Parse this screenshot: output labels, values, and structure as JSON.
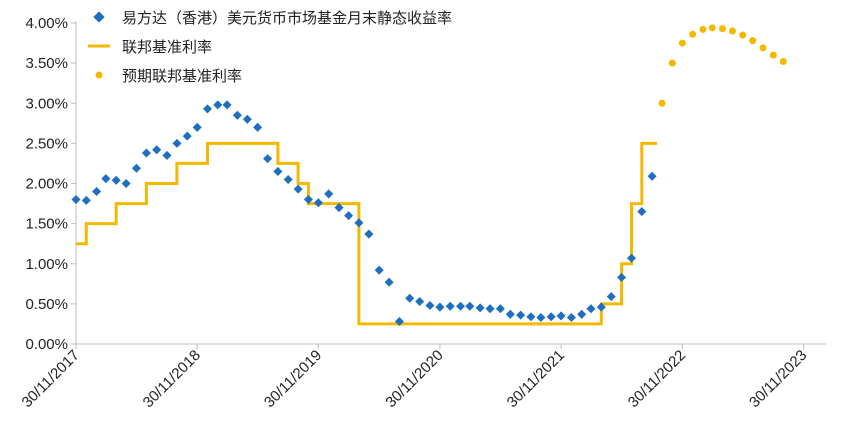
{
  "chart_data": {
    "type": "line",
    "ylim": [
      0,
      0.04
    ],
    "y_ticks": [
      "0.00%",
      "0.50%",
      "1.00%",
      "1.50%",
      "2.00%",
      "2.50%",
      "3.00%",
      "3.50%",
      "4.00%"
    ],
    "x_ticks": [
      "30/11/2017",
      "30/11/2018",
      "30/11/2019",
      "30/11/2020",
      "30/11/2021",
      "30/11/2022",
      "30/11/2023"
    ],
    "x_tick_dates": [
      "2017-11-30",
      "2018-11-30",
      "2019-11-30",
      "2020-11-30",
      "2021-11-30",
      "2022-11-30",
      "2023-11-30"
    ],
    "colors": {
      "fund": "#1f6fc0",
      "fed": "#f5b800",
      "projection": "#f5b800",
      "axis": "#bfbfbf"
    },
    "grid": false,
    "legend_position": "top-center",
    "series": [
      {
        "name": "易方达（香港）美元货币市场基金月末静态收益率",
        "style": "diamond-marker",
        "color": "#1f6fc0",
        "points": [
          [
            "2017-11-30",
            0.018
          ],
          [
            "2017-12-31",
            0.0179
          ],
          [
            "2018-01-31",
            0.019
          ],
          [
            "2018-02-28",
            0.0206
          ],
          [
            "2018-03-31",
            0.0204
          ],
          [
            "2018-04-30",
            0.02
          ],
          [
            "2018-05-31",
            0.0219
          ],
          [
            "2018-06-30",
            0.0238
          ],
          [
            "2018-07-31",
            0.0242
          ],
          [
            "2018-08-31",
            0.0235
          ],
          [
            "2018-09-30",
            0.025
          ],
          [
            "2018-10-31",
            0.0259
          ],
          [
            "2018-11-30",
            0.027
          ],
          [
            "2018-12-31",
            0.0293
          ],
          [
            "2019-01-31",
            0.0298
          ],
          [
            "2019-02-28",
            0.0298
          ],
          [
            "2019-03-31",
            0.0285
          ],
          [
            "2019-04-30",
            0.028
          ],
          [
            "2019-05-31",
            0.027
          ],
          [
            "2019-06-30",
            0.0231
          ],
          [
            "2019-07-31",
            0.0215
          ],
          [
            "2019-08-31",
            0.0205
          ],
          [
            "2019-09-30",
            0.0193
          ],
          [
            "2019-10-31",
            0.018
          ],
          [
            "2019-11-30",
            0.0176
          ],
          [
            "2019-12-31",
            0.0187
          ],
          [
            "2020-01-31",
            0.017
          ],
          [
            "2020-02-29",
            0.016
          ],
          [
            "2020-03-31",
            0.0151
          ],
          [
            "2020-04-30",
            0.0137
          ],
          [
            "2020-05-31",
            0.0092
          ],
          [
            "2020-06-30",
            0.0077
          ],
          [
            "2020-07-31",
            0.0028
          ],
          [
            "2020-08-31",
            0.0057
          ],
          [
            "2020-09-30",
            0.0053
          ],
          [
            "2020-10-31",
            0.0048
          ],
          [
            "2020-11-30",
            0.0046
          ],
          [
            "2020-12-31",
            0.0047
          ],
          [
            "2021-01-31",
            0.0047
          ],
          [
            "2021-02-28",
            0.0047
          ],
          [
            "2021-03-31",
            0.0045
          ],
          [
            "2021-04-30",
            0.0044
          ],
          [
            "2021-05-31",
            0.0044
          ],
          [
            "2021-06-30",
            0.0037
          ],
          [
            "2021-07-31",
            0.0036
          ],
          [
            "2021-08-31",
            0.0034
          ],
          [
            "2021-09-30",
            0.0033
          ],
          [
            "2021-10-31",
            0.0034
          ],
          [
            "2021-11-30",
            0.0035
          ],
          [
            "2021-12-31",
            0.0033
          ],
          [
            "2022-01-31",
            0.0037
          ],
          [
            "2022-02-28",
            0.0044
          ],
          [
            "2022-03-31",
            0.0046
          ],
          [
            "2022-04-30",
            0.0059
          ],
          [
            "2022-05-31",
            0.0083
          ],
          [
            "2022-06-30",
            0.0107
          ],
          [
            "2022-07-31",
            0.0165
          ],
          [
            "2022-08-31",
            0.0209
          ]
        ]
      },
      {
        "name": "联邦基准利率",
        "style": "step-line",
        "color": "#f5b800",
        "points": [
          [
            "2017-11-30",
            0.0125
          ],
          [
            "2017-12-31",
            0.015
          ],
          [
            "2018-01-31",
            0.015
          ],
          [
            "2018-02-28",
            0.015
          ],
          [
            "2018-03-31",
            0.0175
          ],
          [
            "2018-04-30",
            0.0175
          ],
          [
            "2018-05-31",
            0.0175
          ],
          [
            "2018-06-30",
            0.02
          ],
          [
            "2018-07-31",
            0.02
          ],
          [
            "2018-08-31",
            0.02
          ],
          [
            "2018-09-30",
            0.0225
          ],
          [
            "2018-10-31",
            0.0225
          ],
          [
            "2018-11-30",
            0.0225
          ],
          [
            "2018-12-31",
            0.025
          ],
          [
            "2019-01-31",
            0.025
          ],
          [
            "2019-02-28",
            0.025
          ],
          [
            "2019-03-31",
            0.025
          ],
          [
            "2019-04-30",
            0.025
          ],
          [
            "2019-05-31",
            0.025
          ],
          [
            "2019-06-30",
            0.025
          ],
          [
            "2019-07-31",
            0.0225
          ],
          [
            "2019-08-31",
            0.0225
          ],
          [
            "2019-09-30",
            0.02
          ],
          [
            "2019-10-31",
            0.0175
          ],
          [
            "2019-11-30",
            0.0175
          ],
          [
            "2019-12-31",
            0.0175
          ],
          [
            "2020-01-31",
            0.0175
          ],
          [
            "2020-02-29",
            0.0175
          ],
          [
            "2020-03-31",
            0.0025
          ],
          [
            "2020-04-30",
            0.0025
          ],
          [
            "2020-05-31",
            0.0025
          ],
          [
            "2020-06-30",
            0.0025
          ],
          [
            "2020-07-31",
            0.0025
          ],
          [
            "2020-08-31",
            0.0025
          ],
          [
            "2020-09-30",
            0.0025
          ],
          [
            "2020-10-31",
            0.0025
          ],
          [
            "2020-11-30",
            0.0025
          ],
          [
            "2020-12-31",
            0.0025
          ],
          [
            "2021-01-31",
            0.0025
          ],
          [
            "2021-02-28",
            0.0025
          ],
          [
            "2021-03-31",
            0.0025
          ],
          [
            "2021-04-30",
            0.0025
          ],
          [
            "2021-05-31",
            0.0025
          ],
          [
            "2021-06-30",
            0.0025
          ],
          [
            "2021-07-31",
            0.0025
          ],
          [
            "2021-08-31",
            0.0025
          ],
          [
            "2021-09-30",
            0.0025
          ],
          [
            "2021-10-31",
            0.0025
          ],
          [
            "2021-11-30",
            0.0025
          ],
          [
            "2021-12-31",
            0.0025
          ],
          [
            "2022-01-31",
            0.0025
          ],
          [
            "2022-02-28",
            0.0025
          ],
          [
            "2022-03-31",
            0.005
          ],
          [
            "2022-04-30",
            0.005
          ],
          [
            "2022-05-31",
            0.01
          ],
          [
            "2022-06-30",
            0.0175
          ],
          [
            "2022-07-31",
            0.025
          ],
          [
            "2022-08-31",
            0.025
          ],
          [
            "2022-09-15",
            0.025
          ]
        ]
      },
      {
        "name": "预期联邦基准利率",
        "style": "circle-marker",
        "color": "#f5b800",
        "points": [
          [
            "2022-09-30",
            0.03
          ],
          [
            "2022-10-31",
            0.035
          ],
          [
            "2022-11-30",
            0.0375
          ],
          [
            "2022-12-31",
            0.0386
          ],
          [
            "2023-01-31",
            0.0392
          ],
          [
            "2023-02-28",
            0.0394
          ],
          [
            "2023-03-31",
            0.0393
          ],
          [
            "2023-04-30",
            0.039
          ],
          [
            "2023-05-31",
            0.0385
          ],
          [
            "2023-06-30",
            0.0378
          ],
          [
            "2023-07-31",
            0.0369
          ],
          [
            "2023-08-31",
            0.036
          ],
          [
            "2023-09-30",
            0.0352
          ]
        ]
      }
    ]
  }
}
